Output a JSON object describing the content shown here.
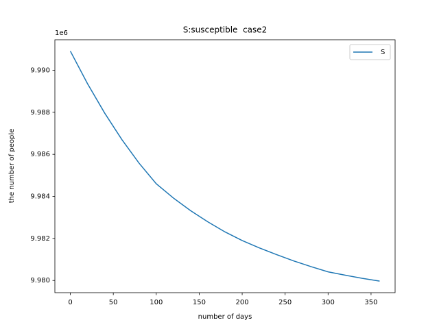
{
  "chart_data": {
    "type": "line",
    "title": "S:susceptible  case2",
    "x_label": "number of days",
    "y_label": "the number of people",
    "y_offset_label": "1e6",
    "x": [
      0,
      20,
      40,
      60,
      80,
      100,
      120,
      140,
      160,
      180,
      200,
      220,
      240,
      260,
      280,
      300,
      320,
      340,
      360
    ],
    "series": [
      {
        "name": "S",
        "color": "#1f77b4",
        "values": [
          9.99091,
          9.98936,
          9.98796,
          9.9867,
          9.98558,
          9.9846,
          9.98392,
          9.98332,
          9.98279,
          9.98231,
          9.9819,
          9.98155,
          9.98123,
          9.98093,
          9.98066,
          9.98041,
          9.98025,
          9.9801,
          9.97997
        ]
      }
    ],
    "xlim": [
      -18,
      378
    ],
    "ylim": [
      9.97942,
      9.99145
    ],
    "xticks": [
      0,
      50,
      100,
      150,
      200,
      250,
      300,
      350
    ],
    "yticks": [
      {
        "value": 9.98,
        "label": "9.980"
      },
      {
        "value": 9.982,
        "label": "9.982"
      },
      {
        "value": 9.984,
        "label": "9.984"
      },
      {
        "value": 9.986,
        "label": "9.986"
      },
      {
        "value": 9.988,
        "label": "9.988"
      },
      {
        "value": 9.99,
        "label": "9.990"
      }
    ],
    "legend": "upper right",
    "grid": false
  }
}
